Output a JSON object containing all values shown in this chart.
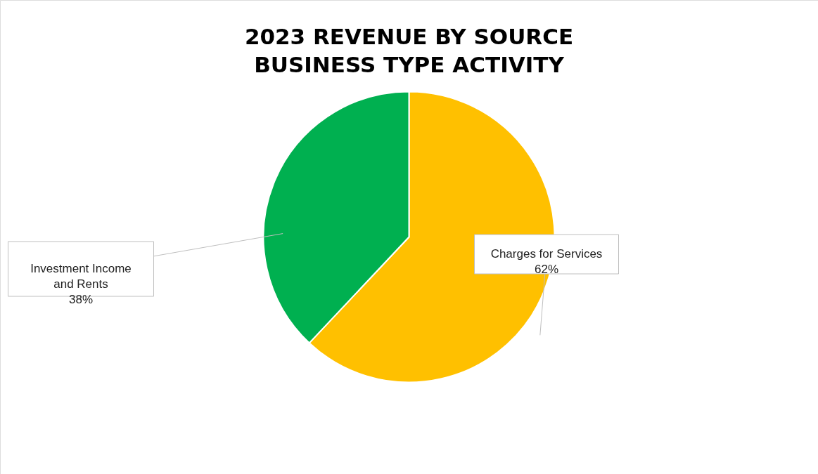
{
  "chart_data": {
    "type": "pie",
    "title": "2023 REVENUE BY SOURCE\nBUSINESS TYPE ACTIVITY",
    "categories": [
      "Charges for Services",
      "Investment Income and Rents"
    ],
    "values": [
      62,
      38
    ],
    "colors": [
      "#ffc000",
      "#00b050"
    ],
    "value_labels": [
      "62%",
      "38%"
    ],
    "legend": false
  }
}
